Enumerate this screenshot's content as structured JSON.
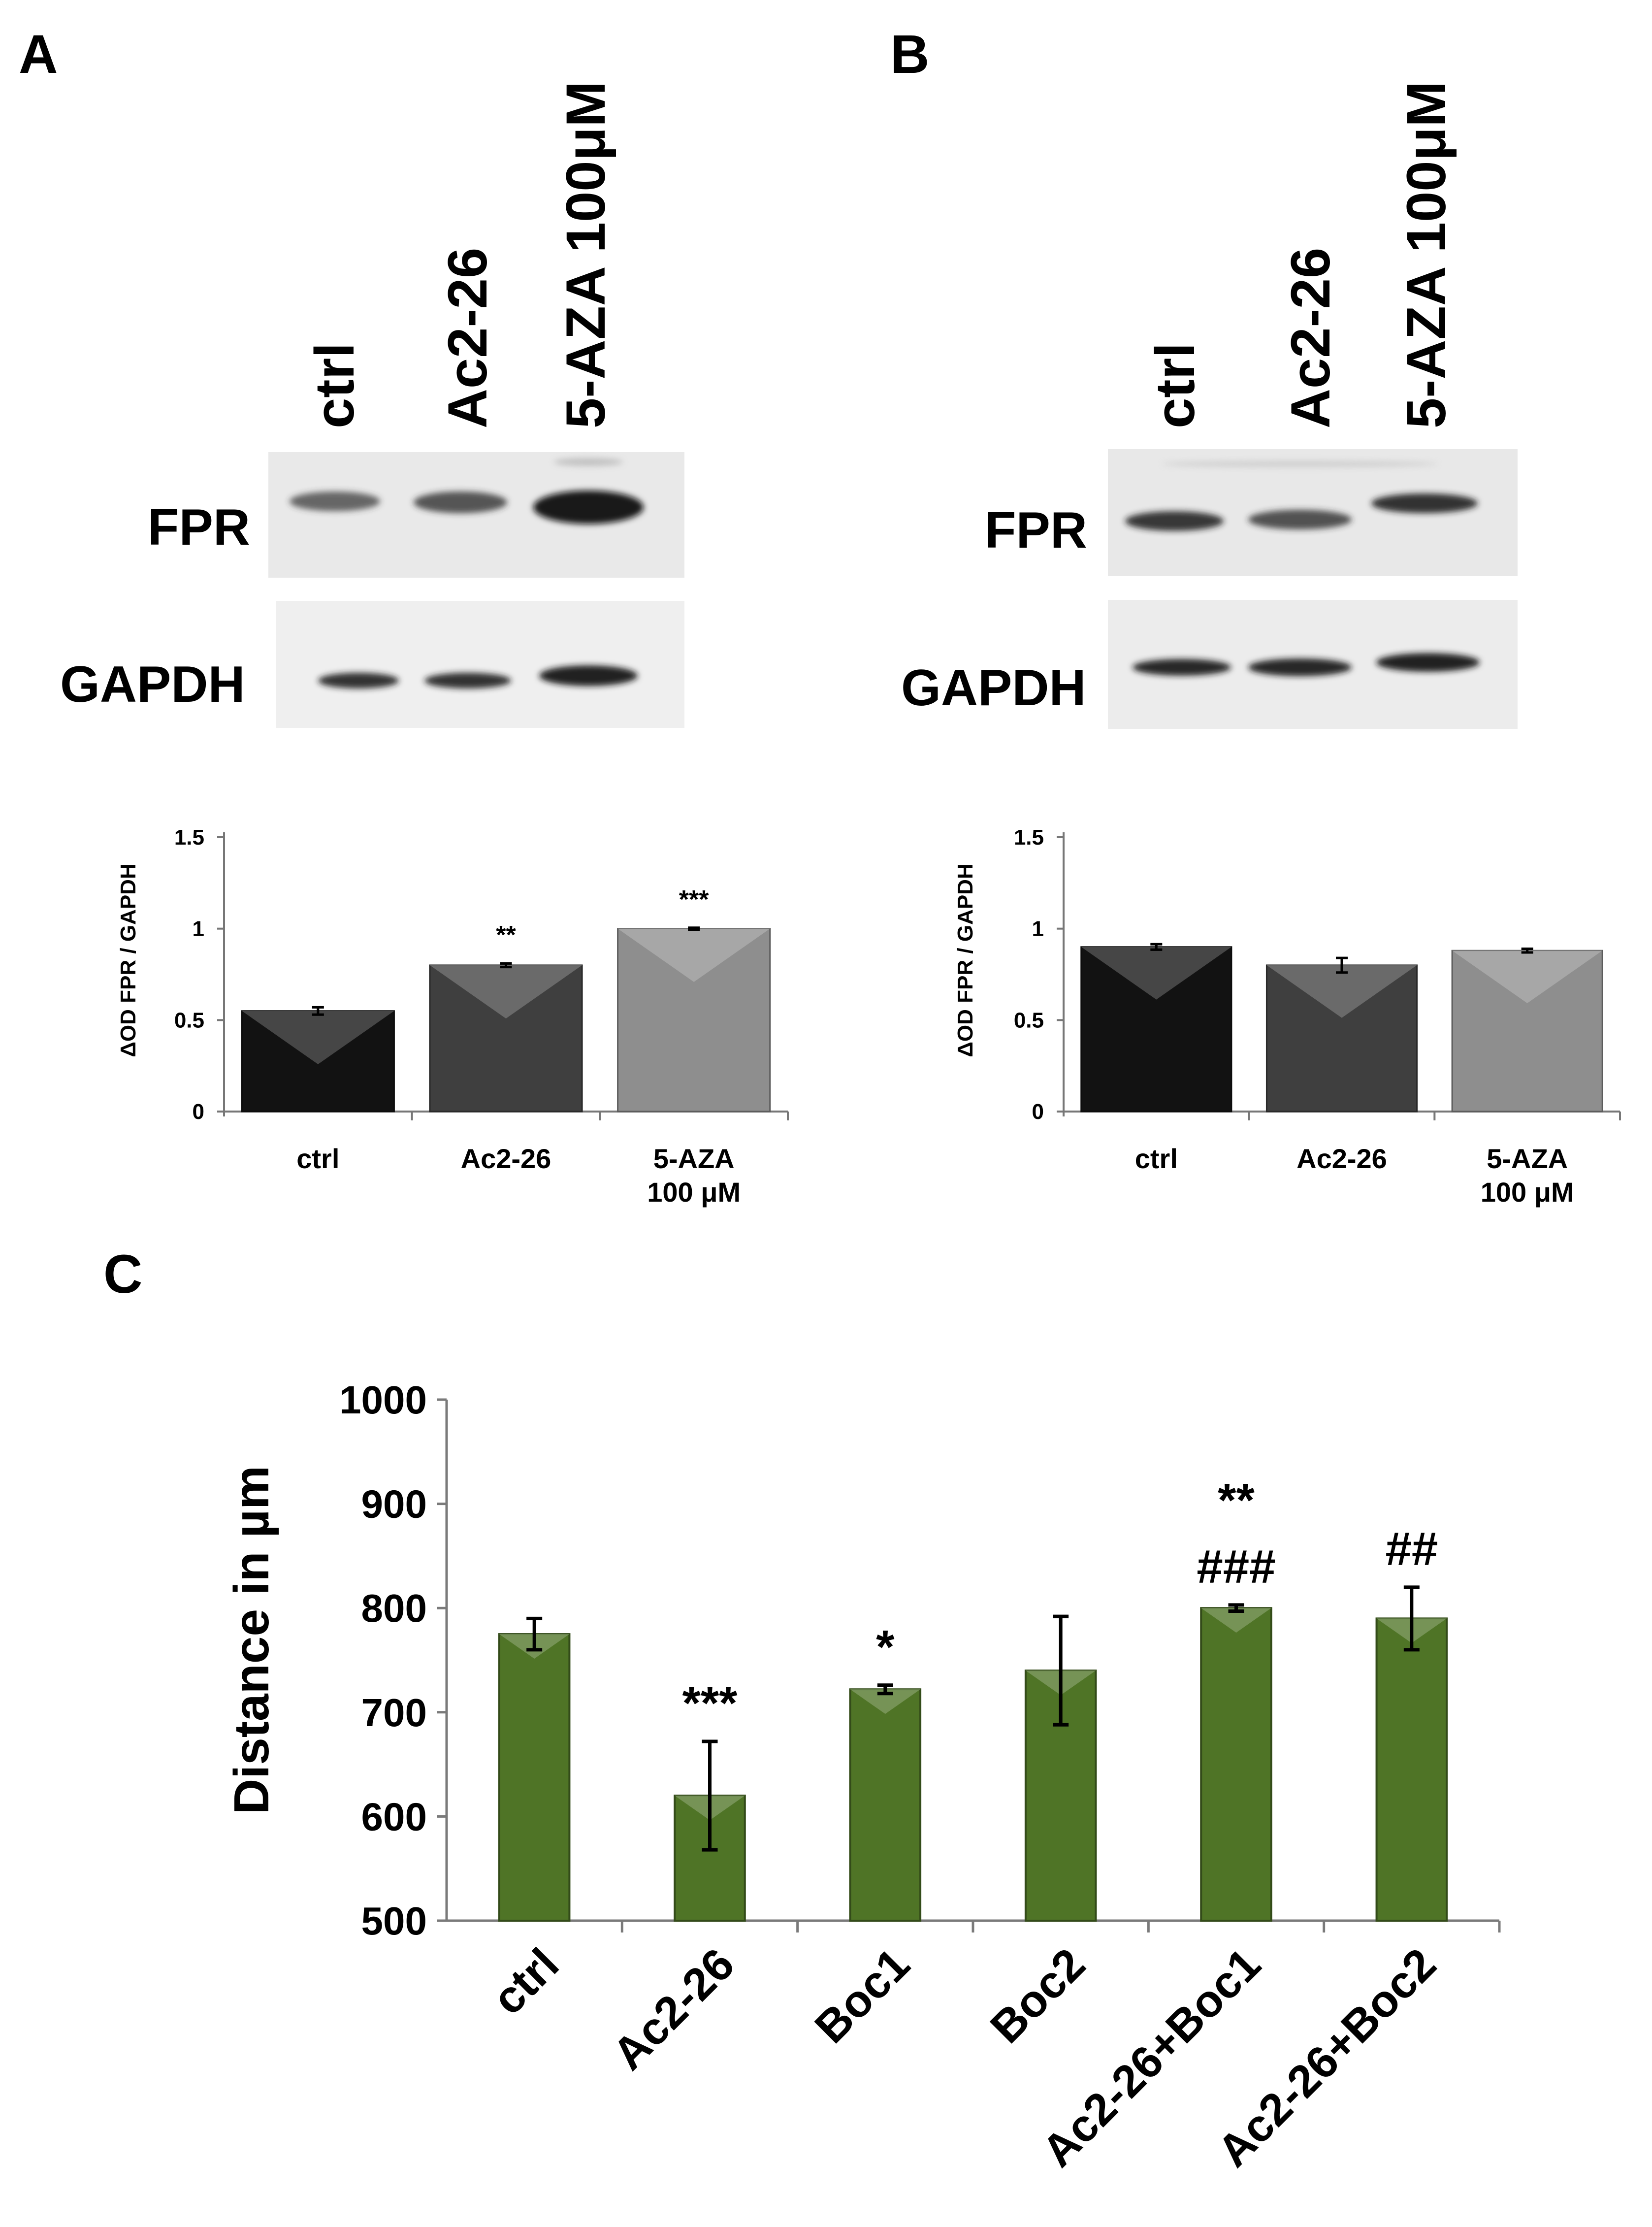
{
  "panels": {
    "a": "A",
    "b": "B",
    "c": "C"
  },
  "blots": [
    {
      "id": "A",
      "lanes": [
        "ctrl",
        "Ac2-26",
        "5-AZA 100μM"
      ],
      "proteins": [
        "FPR",
        "GAPDH"
      ],
      "fpr_band_strength": [
        0.6,
        0.7,
        1.0
      ],
      "gapdh_band_strength": [
        0.8,
        0.8,
        0.9
      ]
    },
    {
      "id": "B",
      "lanes": [
        "ctrl",
        "Ac2-26",
        "5-AZA 100μM"
      ],
      "proteins": [
        "FPR",
        "GAPDH"
      ],
      "fpr_band_strength": [
        0.85,
        0.75,
        0.85
      ],
      "gapdh_band_strength": [
        0.85,
        0.85,
        0.85
      ]
    }
  ],
  "chart_data": [
    {
      "panel": "A",
      "type": "bar",
      "categories": [
        "ctrl",
        "Ac2-26",
        "5-AZA 100 μM"
      ],
      "category_lines": [
        [
          "ctrl"
        ],
        [
          "Ac2-26"
        ],
        [
          "5-AZA",
          "100 μM"
        ]
      ],
      "values": [
        0.55,
        0.8,
        1.0
      ],
      "errors": [
        0.02,
        0.01,
        0.005
      ],
      "significance": [
        "",
        "**",
        "***"
      ],
      "bar_colors": [
        "#121212",
        "#3f3f3f",
        "#8e8e8e"
      ],
      "ylabel": "ΔOD FPR / GAPDH",
      "ylim": [
        0,
        1.5
      ],
      "yticks": [
        0,
        0.5,
        1,
        1.5
      ],
      "ytick_labels": [
        "0",
        "0.5",
        "1",
        "1.5"
      ],
      "grid": false
    },
    {
      "panel": "B",
      "type": "bar",
      "categories": [
        "ctrl",
        "Ac2-26",
        "5-AZA 100 μM"
      ],
      "category_lines": [
        [
          "ctrl"
        ],
        [
          "Ac2-26"
        ],
        [
          "5-AZA",
          "100 μM"
        ]
      ],
      "values": [
        0.9,
        0.8,
        0.88
      ],
      "errors": [
        0.015,
        0.04,
        0.01
      ],
      "significance": [
        "",
        "",
        ""
      ],
      "bar_colors": [
        "#121212",
        "#3f3f3f",
        "#8e8e8e"
      ],
      "ylabel": "ΔOD FPR / GAPDH",
      "ylim": [
        0,
        1.5
      ],
      "yticks": [
        0,
        0.5,
        1,
        1.5
      ],
      "ytick_labels": [
        "0",
        "0.5",
        "1",
        "1.5"
      ],
      "grid": false
    },
    {
      "panel": "C",
      "type": "bar",
      "categories": [
        "ctrl",
        "Ac2-26",
        "Boc1",
        "Boc2",
        "Ac2-26+Boc1",
        "Ac2-26+Boc2"
      ],
      "values": [
        775,
        620,
        722,
        740,
        800,
        790
      ],
      "errors": [
        15,
        52,
        4,
        52,
        3,
        30
      ],
      "significance": [
        [],
        [
          "***"
        ],
        [
          "*"
        ],
        [],
        [
          "**",
          "###"
        ],
        [
          "##"
        ]
      ],
      "bar_color": "#4f7426",
      "ylabel": "Distance in µm",
      "ylim": [
        500,
        1000
      ],
      "yticks": [
        500,
        600,
        700,
        800,
        900,
        1000
      ],
      "ytick_labels": [
        "500",
        "600",
        "700",
        "800",
        "900",
        "1000"
      ],
      "grid": false
    }
  ]
}
